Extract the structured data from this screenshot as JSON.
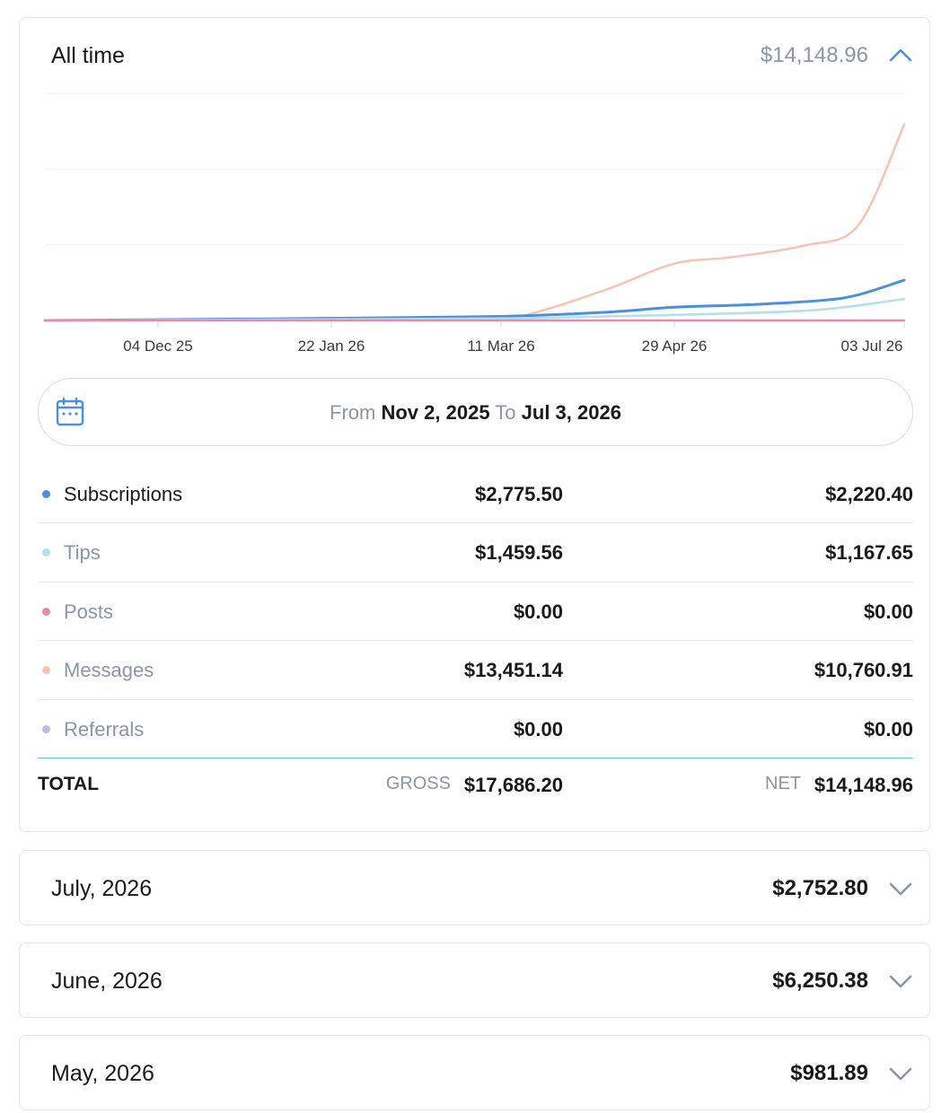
{
  "summary": {
    "title": "All time",
    "total": "$14,148.96",
    "expanded_icon": "chevron-up-icon"
  },
  "chart_data": {
    "type": "line",
    "x_ticks": [
      "04 Dec 25",
      "22 Jan 26",
      "11 Mar 26",
      "29 Apr 26",
      "03 Jul 26"
    ],
    "x_range": [
      "2025-11-02",
      "2026-07-03"
    ],
    "grid": true,
    "series": [
      {
        "name": "Messages",
        "color": "#f6c4b4",
        "points": [
          [
            "2025-11-02",
            0
          ],
          [
            "2025-12-04",
            40
          ],
          [
            "2026-01-22",
            100
          ],
          [
            "2026-03-11",
            160
          ],
          [
            "2026-03-20",
            400
          ],
          [
            "2026-04-10",
            1700
          ],
          [
            "2026-04-29",
            3100
          ],
          [
            "2026-05-15",
            3450
          ],
          [
            "2026-06-05",
            4100
          ],
          [
            "2026-06-20",
            5200
          ],
          [
            "2026-07-03",
            10700
          ]
        ]
      },
      {
        "name": "Subscriptions",
        "color": "#4a8fe0",
        "points": [
          [
            "2025-11-02",
            0
          ],
          [
            "2025-12-04",
            40
          ],
          [
            "2026-01-22",
            120
          ],
          [
            "2026-03-11",
            220
          ],
          [
            "2026-04-10",
            450
          ],
          [
            "2026-04-29",
            720
          ],
          [
            "2026-05-20",
            860
          ],
          [
            "2026-06-10",
            1100
          ],
          [
            "2026-06-20",
            1400
          ],
          [
            "2026-07-03",
            2200
          ]
        ]
      },
      {
        "name": "Tips",
        "color": "#b5dfea",
        "points": [
          [
            "2025-11-02",
            0
          ],
          [
            "2025-12-04",
            20
          ],
          [
            "2026-01-22",
            60
          ],
          [
            "2026-03-11",
            110
          ],
          [
            "2026-04-10",
            220
          ],
          [
            "2026-05-15",
            380
          ],
          [
            "2026-06-10",
            600
          ],
          [
            "2026-07-03",
            1170
          ]
        ]
      },
      {
        "name": "Posts",
        "color": "#e88aa8",
        "points": [
          [
            "2025-11-02",
            0
          ],
          [
            "2026-07-03",
            0
          ]
        ]
      }
    ]
  },
  "date_range": {
    "from_label": "From",
    "from_value": "Nov 2, 2025",
    "to_label": "To",
    "to_value": "Jul 3, 2026"
  },
  "breakdown": [
    {
      "label": "Subscriptions",
      "gross": "$2,775.50",
      "net": "$2,220.40",
      "color": "#4a8fe0",
      "active": true
    },
    {
      "label": "Tips",
      "gross": "$1,459.56",
      "net": "$1,167.65",
      "color": "#b5dfea",
      "active": false
    },
    {
      "label": "Posts",
      "gross": "$0.00",
      "net": "$0.00",
      "color": "#e88aa8",
      "active": false
    },
    {
      "label": "Messages",
      "gross": "$13,451.14",
      "net": "$10,760.91",
      "color": "#f6c4b4",
      "active": false
    },
    {
      "label": "Referrals",
      "gross": "$0.00",
      "net": "$0.00",
      "color": "#c9b3e2",
      "active": false
    }
  ],
  "totals": {
    "label": "TOTAL",
    "gross_label": "GROSS",
    "gross": "$17,686.20",
    "net_label": "NET",
    "net": "$14,148.96"
  },
  "months": [
    {
      "title": "July, 2026",
      "total": "$2,752.80"
    },
    {
      "title": "June, 2026",
      "total": "$6,250.38"
    },
    {
      "title": "May, 2026",
      "total": "$981.89"
    }
  ],
  "colors": {
    "accent": "#4a8fe0",
    "muted_text": "#8a96a3",
    "divider": "#e6e9ec",
    "total_divider": "#6fc3c9"
  }
}
